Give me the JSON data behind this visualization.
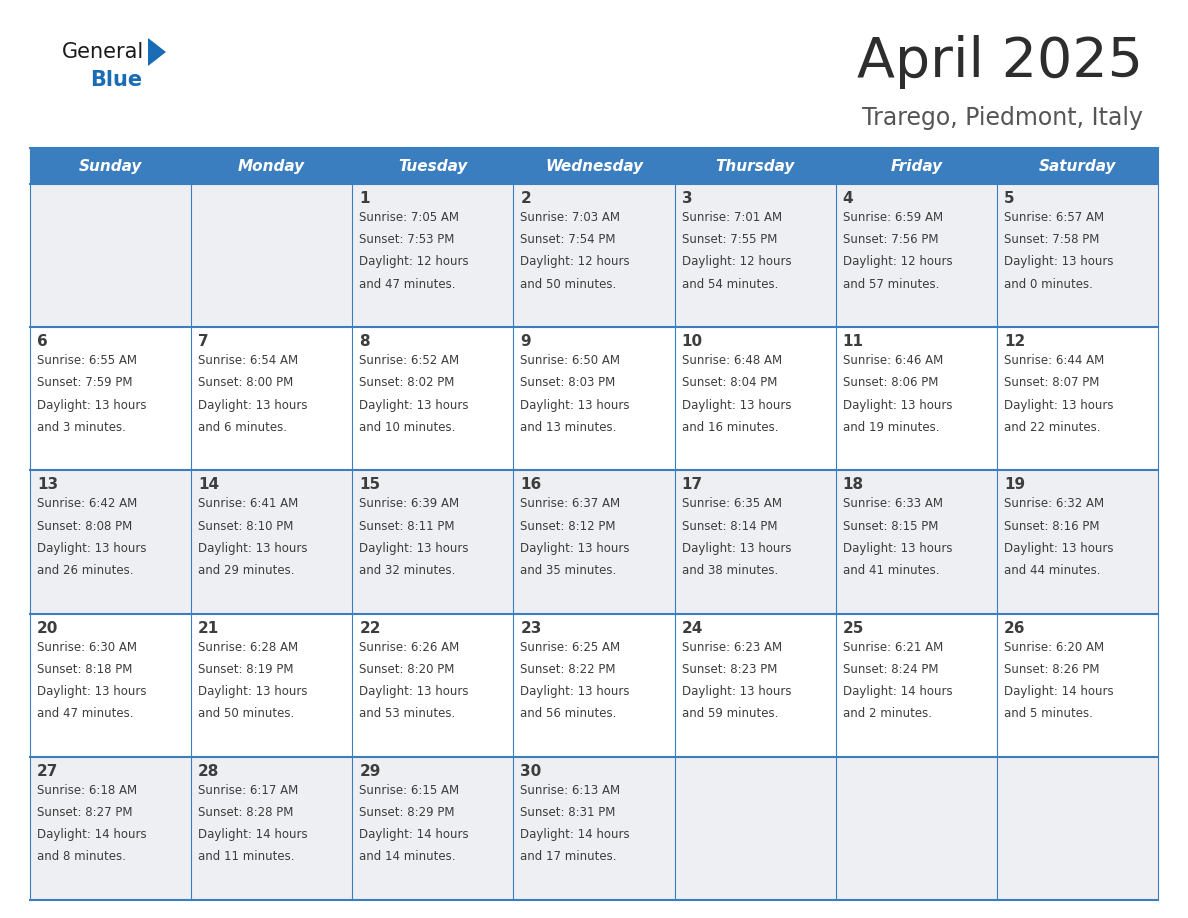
{
  "title": "April 2025",
  "subtitle": "Trarego, Piedmont, Italy",
  "header_bg_color": "#3a7ebf",
  "header_text_color": "#ffffff",
  "row_bg_odd": "#eeeff2",
  "row_bg_even": "#ffffff",
  "border_color": "#3a7ebf",
  "day_headers": [
    "Sunday",
    "Monday",
    "Tuesday",
    "Wednesday",
    "Thursday",
    "Friday",
    "Saturday"
  ],
  "calendar_data": [
    [
      {
        "day": "",
        "sunrise": "",
        "sunset": "",
        "daylight": ""
      },
      {
        "day": "",
        "sunrise": "",
        "sunset": "",
        "daylight": ""
      },
      {
        "day": "1",
        "sunrise": "7:05 AM",
        "sunset": "7:53 PM",
        "daylight": "12 hours and 47 minutes."
      },
      {
        "day": "2",
        "sunrise": "7:03 AM",
        "sunset": "7:54 PM",
        "daylight": "12 hours and 50 minutes."
      },
      {
        "day": "3",
        "sunrise": "7:01 AM",
        "sunset": "7:55 PM",
        "daylight": "12 hours and 54 minutes."
      },
      {
        "day": "4",
        "sunrise": "6:59 AM",
        "sunset": "7:56 PM",
        "daylight": "12 hours and 57 minutes."
      },
      {
        "day": "5",
        "sunrise": "6:57 AM",
        "sunset": "7:58 PM",
        "daylight": "13 hours and 0 minutes."
      }
    ],
    [
      {
        "day": "6",
        "sunrise": "6:55 AM",
        "sunset": "7:59 PM",
        "daylight": "13 hours and 3 minutes."
      },
      {
        "day": "7",
        "sunrise": "6:54 AM",
        "sunset": "8:00 PM",
        "daylight": "13 hours and 6 minutes."
      },
      {
        "day": "8",
        "sunrise": "6:52 AM",
        "sunset": "8:02 PM",
        "daylight": "13 hours and 10 minutes."
      },
      {
        "day": "9",
        "sunrise": "6:50 AM",
        "sunset": "8:03 PM",
        "daylight": "13 hours and 13 minutes."
      },
      {
        "day": "10",
        "sunrise": "6:48 AM",
        "sunset": "8:04 PM",
        "daylight": "13 hours and 16 minutes."
      },
      {
        "day": "11",
        "sunrise": "6:46 AM",
        "sunset": "8:06 PM",
        "daylight": "13 hours and 19 minutes."
      },
      {
        "day": "12",
        "sunrise": "6:44 AM",
        "sunset": "8:07 PM",
        "daylight": "13 hours and 22 minutes."
      }
    ],
    [
      {
        "day": "13",
        "sunrise": "6:42 AM",
        "sunset": "8:08 PM",
        "daylight": "13 hours and 26 minutes."
      },
      {
        "day": "14",
        "sunrise": "6:41 AM",
        "sunset": "8:10 PM",
        "daylight": "13 hours and 29 minutes."
      },
      {
        "day": "15",
        "sunrise": "6:39 AM",
        "sunset": "8:11 PM",
        "daylight": "13 hours and 32 minutes."
      },
      {
        "day": "16",
        "sunrise": "6:37 AM",
        "sunset": "8:12 PM",
        "daylight": "13 hours and 35 minutes."
      },
      {
        "day": "17",
        "sunrise": "6:35 AM",
        "sunset": "8:14 PM",
        "daylight": "13 hours and 38 minutes."
      },
      {
        "day": "18",
        "sunrise": "6:33 AM",
        "sunset": "8:15 PM",
        "daylight": "13 hours and 41 minutes."
      },
      {
        "day": "19",
        "sunrise": "6:32 AM",
        "sunset": "8:16 PM",
        "daylight": "13 hours and 44 minutes."
      }
    ],
    [
      {
        "day": "20",
        "sunrise": "6:30 AM",
        "sunset": "8:18 PM",
        "daylight": "13 hours and 47 minutes."
      },
      {
        "day": "21",
        "sunrise": "6:28 AM",
        "sunset": "8:19 PM",
        "daylight": "13 hours and 50 minutes."
      },
      {
        "day": "22",
        "sunrise": "6:26 AM",
        "sunset": "8:20 PM",
        "daylight": "13 hours and 53 minutes."
      },
      {
        "day": "23",
        "sunrise": "6:25 AM",
        "sunset": "8:22 PM",
        "daylight": "13 hours and 56 minutes."
      },
      {
        "day": "24",
        "sunrise": "6:23 AM",
        "sunset": "8:23 PM",
        "daylight": "13 hours and 59 minutes."
      },
      {
        "day": "25",
        "sunrise": "6:21 AM",
        "sunset": "8:24 PM",
        "daylight": "14 hours and 2 minutes."
      },
      {
        "day": "26",
        "sunrise": "6:20 AM",
        "sunset": "8:26 PM",
        "daylight": "14 hours and 5 minutes."
      }
    ],
    [
      {
        "day": "27",
        "sunrise": "6:18 AM",
        "sunset": "8:27 PM",
        "daylight": "14 hours and 8 minutes."
      },
      {
        "day": "28",
        "sunrise": "6:17 AM",
        "sunset": "8:28 PM",
        "daylight": "14 hours and 11 minutes."
      },
      {
        "day": "29",
        "sunrise": "6:15 AM",
        "sunset": "8:29 PM",
        "daylight": "14 hours and 14 minutes."
      },
      {
        "day": "30",
        "sunrise": "6:13 AM",
        "sunset": "8:31 PM",
        "daylight": "14 hours and 17 minutes."
      },
      {
        "day": "",
        "sunrise": "",
        "sunset": "",
        "daylight": ""
      },
      {
        "day": "",
        "sunrise": "",
        "sunset": "",
        "daylight": ""
      },
      {
        "day": "",
        "sunrise": "",
        "sunset": "",
        "daylight": ""
      }
    ]
  ],
  "text_color": "#3d3d3d",
  "title_color": "#2d2d2d",
  "subtitle_color": "#555555",
  "logo_general_color": "#1a1a1a",
  "logo_blue_color": "#1a6db5",
  "logo_triangle_color": "#1a6db5",
  "figwidth": 11.88,
  "figheight": 9.18,
  "dpi": 100
}
